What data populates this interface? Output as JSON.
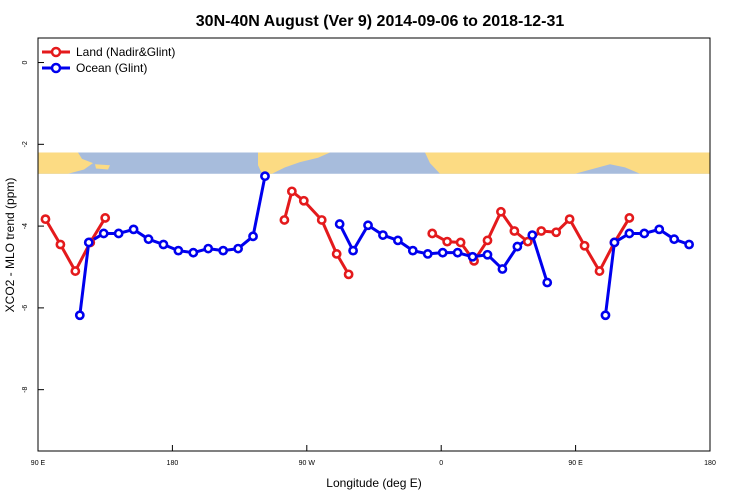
{
  "chart_data": {
    "type": "line",
    "title": "30N-40N August (Ver 9)   2014-09-06 to 2018-12-31",
    "xlabel": "Longitude (deg E)",
    "ylabel": "XCO2 - MLO trend (ppm)",
    "xlim": [
      90,
      540
    ],
    "ylim": [
      -9.5,
      0.6
    ],
    "x_ticks": [
      {
        "value": 90,
        "label": "90 E"
      },
      {
        "value": 180,
        "label": "180"
      },
      {
        "value": 270,
        "label": "90 W"
      },
      {
        "value": 360,
        "label": "0"
      },
      {
        "value": 450,
        "label": "90 E"
      },
      {
        "value": 540,
        "label": "180"
      }
    ],
    "y_ticks": [
      {
        "value": 0,
        "label": "0"
      },
      {
        "value": -2,
        "label": "-2"
      },
      {
        "value": -4,
        "label": "-4"
      },
      {
        "value": -6,
        "label": "-6"
      },
      {
        "value": -8,
        "label": "-8"
      }
    ],
    "map_strip": {
      "y_top": -2.2,
      "y_bottom": -2.72,
      "ocean_color": "#a7bcdc",
      "land_color": "#fcdb83"
    },
    "series": [
      {
        "name": "Land (Nadir&Glint)",
        "color": "#e41a1c",
        "segments": [
          [
            [
              95,
              -3.83
            ],
            [
              105,
              -4.45
            ],
            [
              115,
              -5.1
            ],
            [
              125,
              -4.4
            ],
            [
              135,
              -3.8
            ]
          ],
          [
            [
              255,
              -3.85
            ],
            [
              260,
              -3.15
            ],
            [
              268,
              -3.38
            ],
            [
              280,
              -3.85
            ],
            [
              290,
              -4.68
            ],
            [
              298,
              -5.18
            ]
          ],
          [
            [
              354,
              -4.18
            ],
            [
              364,
              -4.38
            ],
            [
              373,
              -4.4
            ],
            [
              382,
              -4.85
            ],
            [
              391,
              -4.35
            ],
            [
              400,
              -3.65
            ],
            [
              409,
              -4.12
            ],
            [
              418,
              -4.38
            ],
            [
              427,
              -4.12
            ],
            [
              437,
              -4.15
            ],
            [
              446,
              -3.83
            ],
            [
              456,
              -4.48
            ],
            [
              466,
              -5.1
            ],
            [
              476,
              -4.4
            ],
            [
              486,
              -3.8
            ]
          ]
        ]
      },
      {
        "name": "Ocean (Glint)",
        "color": "#0000ee",
        "segments": [
          [
            [
              118,
              -6.18
            ],
            [
              124,
              -4.4
            ],
            [
              134,
              -4.18
            ],
            [
              144,
              -4.18
            ],
            [
              154,
              -4.08
            ],
            [
              164,
              -4.32
            ],
            [
              174,
              -4.45
            ],
            [
              184,
              -4.6
            ],
            [
              194,
              -4.65
            ],
            [
              204,
              -4.55
            ],
            [
              214,
              -4.6
            ],
            [
              224,
              -4.55
            ],
            [
              234,
              -4.25
            ],
            [
              242,
              -2.78
            ]
          ],
          [
            [
              292,
              -3.95
            ],
            [
              301,
              -4.6
            ],
            [
              311,
              -3.98
            ],
            [
              321,
              -4.22
            ],
            [
              331,
              -4.35
            ],
            [
              341,
              -4.6
            ],
            [
              351,
              -4.68
            ],
            [
              361,
              -4.65
            ],
            [
              371,
              -4.65
            ],
            [
              381,
              -4.75
            ],
            [
              391,
              -4.7
            ],
            [
              401,
              -5.05
            ],
            [
              411,
              -4.5
            ],
            [
              421,
              -4.22
            ],
            [
              431,
              -5.38
            ]
          ],
          [
            [
              470,
              -6.18
            ],
            [
              476,
              -4.4
            ],
            [
              486,
              -4.18
            ],
            [
              496,
              -4.18
            ],
            [
              506,
              -4.08
            ],
            [
              516,
              -4.32
            ],
            [
              526,
              -4.45
            ]
          ]
        ]
      }
    ],
    "legend_position": "top-left"
  }
}
